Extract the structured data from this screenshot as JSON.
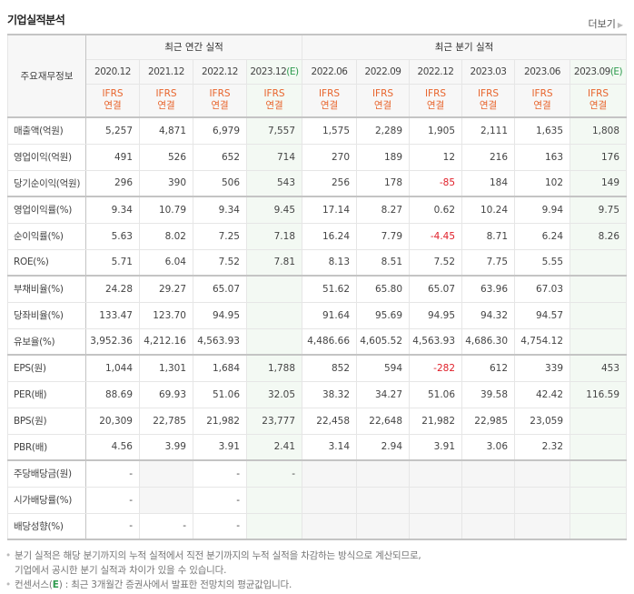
{
  "header": {
    "title": "기업실적분석",
    "more_label": "더보기"
  },
  "table": {
    "corner_label": "주요재무정보",
    "groups": [
      {
        "label": "최근 연간 실적"
      },
      {
        "label": "최근 분기 실적"
      }
    ],
    "periods": [
      {
        "label": "2020.12",
        "est": ""
      },
      {
        "label": "2021.12",
        "est": ""
      },
      {
        "label": "2022.12",
        "est": ""
      },
      {
        "label": "2023.12",
        "est": "(E)"
      },
      {
        "label": "2022.06",
        "est": ""
      },
      {
        "label": "2022.09",
        "est": ""
      },
      {
        "label": "2022.12",
        "est": ""
      },
      {
        "label": "2023.03",
        "est": ""
      },
      {
        "label": "2023.06",
        "est": ""
      },
      {
        "label": "2023.09",
        "est": "(E)"
      }
    ],
    "ifrs_line1": "IFRS",
    "ifrs_line2": "연결",
    "rows": [
      {
        "label": "매출액(억원)",
        "values": [
          "5,257",
          "4,871",
          "6,979",
          "7,557",
          "1,575",
          "2,289",
          "1,905",
          "2,111",
          "1,635",
          "1,808"
        ]
      },
      {
        "label": "영업이익(억원)",
        "values": [
          "491",
          "526",
          "652",
          "714",
          "270",
          "189",
          "12",
          "216",
          "163",
          "176"
        ]
      },
      {
        "label": "당기순이익(억원)",
        "values": [
          "296",
          "390",
          "506",
          "543",
          "256",
          "178",
          "-85",
          "184",
          "102",
          "149"
        ]
      },
      {
        "label": "영업이익률(%)",
        "values": [
          "9.34",
          "10.79",
          "9.34",
          "9.45",
          "17.14",
          "8.27",
          "0.62",
          "10.24",
          "9.94",
          "9.75"
        ]
      },
      {
        "label": "순이익률(%)",
        "values": [
          "5.63",
          "8.02",
          "7.25",
          "7.18",
          "16.24",
          "7.79",
          "-4.45",
          "8.71",
          "6.24",
          "8.26"
        ]
      },
      {
        "label": "ROE(%)",
        "values": [
          "5.71",
          "6.04",
          "7.52",
          "7.81",
          "8.13",
          "8.51",
          "7.52",
          "7.75",
          "5.55",
          ""
        ]
      },
      {
        "label": "부채비율(%)",
        "values": [
          "24.28",
          "29.27",
          "65.07",
          "",
          "51.62",
          "65.80",
          "65.07",
          "63.96",
          "67.03",
          ""
        ]
      },
      {
        "label": "당좌비율(%)",
        "values": [
          "133.47",
          "123.70",
          "94.95",
          "",
          "91.64",
          "95.69",
          "94.95",
          "94.32",
          "94.57",
          ""
        ]
      },
      {
        "label": "유보율(%)",
        "values": [
          "3,952.36",
          "4,212.16",
          "4,563.93",
          "",
          "4,486.66",
          "4,605.52",
          "4,563.93",
          "4,686.30",
          "4,754.12",
          ""
        ]
      },
      {
        "label": "EPS(원)",
        "values": [
          "1,044",
          "1,301",
          "1,684",
          "1,788",
          "852",
          "594",
          "-282",
          "612",
          "339",
          "453"
        ]
      },
      {
        "label": "PER(배)",
        "values": [
          "88.69",
          "69.93",
          "51.06",
          "32.05",
          "38.32",
          "34.27",
          "51.06",
          "39.58",
          "42.42",
          "116.59"
        ]
      },
      {
        "label": "BPS(원)",
        "values": [
          "20,309",
          "22,785",
          "21,982",
          "23,777",
          "22,458",
          "22,648",
          "21,982",
          "22,985",
          "23,059",
          ""
        ]
      },
      {
        "label": "PBR(배)",
        "values": [
          "4.56",
          "3.99",
          "3.91",
          "2.41",
          "3.14",
          "2.94",
          "3.91",
          "3.06",
          "2.32",
          ""
        ]
      },
      {
        "label": "주당배당금(원)",
        "values": [
          "-",
          "",
          "-",
          "-",
          "",
          "",
          "",
          "",
          "",
          ""
        ]
      },
      {
        "label": "시가배당률(%)",
        "values": [
          "-",
          "",
          "-",
          "",
          "",
          "",
          "",
          "",
          "",
          ""
        ]
      },
      {
        "label": "배당성향(%)",
        "values": [
          "-",
          "-",
          "-",
          "",
          "",
          "",
          "",
          "",
          "",
          ""
        ]
      }
    ]
  },
  "notes": {
    "line1": "분기 실적은 해당 분기까지의 누적 실적에서 직전 분기까지의 누적 실적을 차감하는 방식으로 계산되므로,",
    "line2": "기업에서 공시한 분기 실적과 차이가 있을 수 있습니다.",
    "line3_prefix": "컨센서스(",
    "line3_e": "E",
    "line3_suffix": ") : 최근 3개월간 증권사에서 발표한 전망치의 평균값입니다."
  },
  "colors": {
    "ifrs": "#e8642c",
    "estimate": "#2e9b4e",
    "negative": "#e0202a",
    "estimate_bg": "#f3f9f3"
  }
}
